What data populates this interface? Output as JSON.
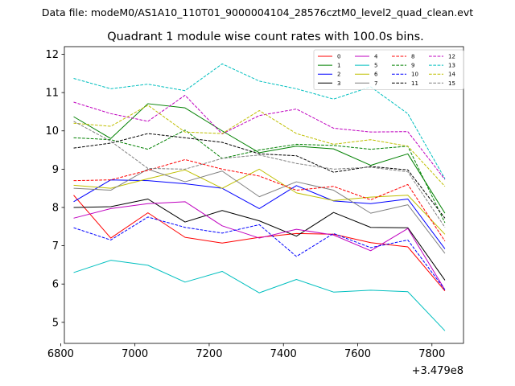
{
  "figure": {
    "suptitle": "Data file: modeM0/AS1A10_110T01_9000004104_28576cztM0_level2_quad_clean.evt"
  },
  "chart_data": {
    "type": "line",
    "title": "Quadrant 1 module wise count rates with 100.0s bins.",
    "xlabel": "",
    "ylabel": "",
    "x_offset_label": "+3.479e8",
    "xlim": [
      6810,
      7885
    ],
    "ylim": [
      4.45,
      12.2
    ],
    "xticks": [
      6800,
      7000,
      7200,
      7400,
      7600,
      7800
    ],
    "xtick_labels": [
      "6800",
      "7000",
      "7200",
      "7400",
      "7600",
      "7800"
    ],
    "yticks": [
      5,
      6,
      7,
      8,
      9,
      10,
      11,
      12
    ],
    "ytick_labels": [
      "5",
      "6",
      "7",
      "8",
      "9",
      "10",
      "11",
      "12"
    ],
    "legend_position": "upper-right",
    "legend_columns": 4,
    "x": [
      6835,
      6935,
      7035,
      7135,
      7235,
      7335,
      7435,
      7535,
      7635,
      7735,
      7835
    ],
    "series": [
      {
        "name": "0",
        "color": "#ff0000",
        "dash": "solid",
        "values": [
          8.32,
          7.2,
          7.86,
          7.22,
          7.07,
          7.22,
          7.32,
          7.3,
          7.08,
          6.97,
          5.82
        ]
      },
      {
        "name": "1",
        "color": "#008000",
        "dash": "solid",
        "values": [
          10.37,
          9.8,
          10.71,
          10.6,
          10.0,
          9.43,
          9.6,
          9.53,
          9.1,
          9.4,
          7.85
        ]
      },
      {
        "name": "2",
        "color": "#0000ff",
        "dash": "solid",
        "values": [
          8.15,
          8.72,
          8.7,
          8.62,
          8.5,
          7.97,
          8.57,
          8.17,
          8.1,
          8.22,
          6.92
        ]
      },
      {
        "name": "3",
        "color": "#000000",
        "dash": "solid",
        "values": [
          8.0,
          8.02,
          8.22,
          7.62,
          7.92,
          7.65,
          7.25,
          7.87,
          7.48,
          7.47,
          6.1
        ]
      },
      {
        "name": "4",
        "color": "#bf00bf",
        "dash": "solid",
        "values": [
          7.72,
          7.97,
          8.1,
          8.15,
          7.52,
          7.2,
          7.43,
          7.28,
          6.87,
          7.45,
          5.85
        ]
      },
      {
        "name": "5",
        "color": "#00bfbf",
        "dash": "solid",
        "values": [
          6.3,
          6.62,
          6.49,
          6.05,
          6.33,
          5.77,
          6.12,
          5.79,
          5.84,
          5.8,
          4.78
        ]
      },
      {
        "name": "6",
        "color": "#bfbf00",
        "dash": "solid",
        "values": [
          8.58,
          8.5,
          8.75,
          8.98,
          8.5,
          9.0,
          8.38,
          8.18,
          8.27,
          8.32,
          7.3
        ]
      },
      {
        "name": "7",
        "color": "#808080",
        "dash": "solid",
        "values": [
          8.5,
          8.45,
          9.0,
          8.67,
          8.95,
          8.28,
          8.67,
          8.45,
          7.85,
          8.07,
          6.8
        ]
      },
      {
        "name": "8",
        "color": "#ff0000",
        "dash": "dashed",
        "values": [
          8.7,
          8.72,
          8.97,
          9.25,
          9.0,
          8.82,
          8.45,
          8.55,
          8.2,
          8.6,
          7.12
        ]
      },
      {
        "name": "9",
        "color": "#008000",
        "dash": "dashed",
        "values": [
          9.82,
          9.77,
          9.52,
          10.02,
          9.28,
          9.5,
          9.65,
          9.62,
          9.52,
          9.6,
          7.6
        ]
      },
      {
        "name": "10",
        "color": "#0000ff",
        "dash": "dashed",
        "values": [
          7.47,
          7.15,
          7.75,
          7.48,
          7.33,
          7.55,
          6.72,
          7.32,
          6.95,
          7.15,
          5.85
        ]
      },
      {
        "name": "11",
        "color": "#000000",
        "dash": "dashed",
        "values": [
          9.55,
          9.68,
          9.93,
          9.82,
          9.7,
          9.4,
          9.35,
          8.92,
          9.07,
          8.98,
          7.72
        ]
      },
      {
        "name": "12",
        "color": "#bf00bf",
        "dash": "dashed",
        "values": [
          10.75,
          10.45,
          10.25,
          10.93,
          9.92,
          10.4,
          10.57,
          10.07,
          9.97,
          9.98,
          8.73
        ]
      },
      {
        "name": "13",
        "color": "#00bfbf",
        "dash": "dashed",
        "values": [
          11.37,
          11.1,
          11.22,
          11.05,
          11.75,
          11.3,
          11.1,
          10.83,
          11.15,
          10.45,
          8.75
        ]
      },
      {
        "name": "14",
        "color": "#bfbf00",
        "dash": "dashed",
        "values": [
          10.2,
          10.12,
          10.67,
          9.97,
          9.93,
          10.53,
          9.93,
          9.65,
          9.77,
          9.6,
          8.55
        ]
      },
      {
        "name": "15",
        "color": "#808080",
        "dash": "dashed",
        "values": [
          10.25,
          9.73,
          9.02,
          9.0,
          9.28,
          9.37,
          9.15,
          9.0,
          9.05,
          8.93,
          7.48
        ]
      }
    ]
  }
}
